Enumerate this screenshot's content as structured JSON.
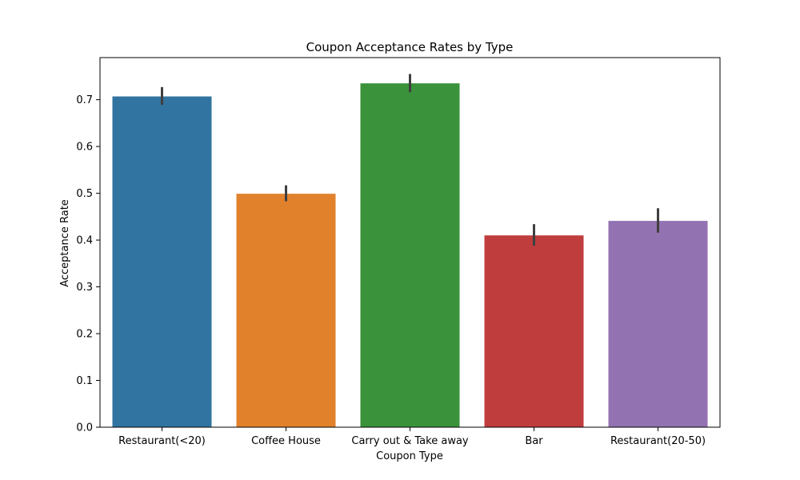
{
  "chart_data": {
    "type": "bar",
    "title": "Coupon Acceptance Rates by Type",
    "xlabel": "Coupon Type",
    "ylabel": "Acceptance Rate",
    "categories": [
      "Restaurant(<20)",
      "Coffee House",
      "Carry out & Take away",
      "Bar",
      "Restaurant(20-50)"
    ],
    "values": [
      0.707,
      0.499,
      0.735,
      0.41,
      0.441
    ],
    "error_low": [
      0.689,
      0.483,
      0.716,
      0.388,
      0.416
    ],
    "error_high": [
      0.727,
      0.517,
      0.755,
      0.434,
      0.468
    ],
    "ylim": [
      0,
      0.79
    ],
    "yticks": [
      0.0,
      0.1,
      0.2,
      0.3,
      0.4,
      0.5,
      0.6,
      0.7
    ],
    "ytick_labels": [
      "0.0",
      "0.1",
      "0.2",
      "0.3",
      "0.4",
      "0.5",
      "0.6",
      "0.7"
    ],
    "grid": false,
    "colors": [
      "#3274a1",
      "#e1812c",
      "#3a923a",
      "#c03d3e",
      "#9372b2"
    ],
    "error_color": "#3f3f3f"
  }
}
